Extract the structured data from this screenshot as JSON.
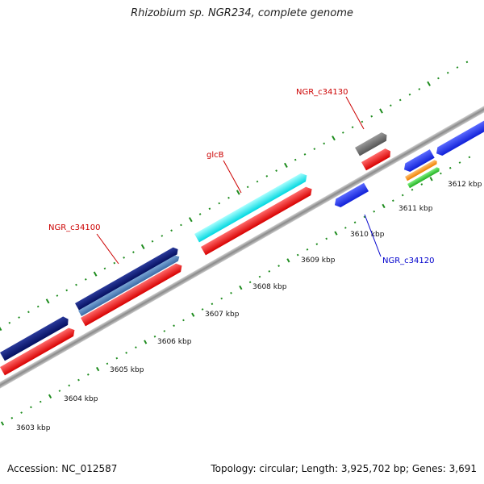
{
  "title": "Rhizobium sp. NGR234, complete genome",
  "footer": {
    "accession": "Accession: NC_012587",
    "stats": "Topology: circular; Length: 3,925,702 bp; Genes: 3,691"
  },
  "colors": {
    "backbone": "#9a9a9a",
    "tick": "#1e8c1e",
    "forward_gene": "#ee1111",
    "reverse_gene": "#1133ee",
    "label_red": "#cc0000",
    "label_blue": "#0000cc"
  },
  "tick_labels": [
    "3603 kbp",
    "3604 kbp",
    "3605 kbp",
    "3606 kbp",
    "3607 kbp",
    "3608 kbp",
    "3609 kbp",
    "3610 kbp",
    "3611 kbp",
    "3612 kbp"
  ],
  "gene_labels": [
    {
      "id": "NGR_c34100",
      "color": "#cc0000"
    },
    {
      "id": "glcB",
      "color": "#cc0000"
    },
    {
      "id": "NGR_c34130",
      "color": "#cc0000"
    },
    {
      "id": "NGR_c34120",
      "color": "#0000cc"
    }
  ]
}
